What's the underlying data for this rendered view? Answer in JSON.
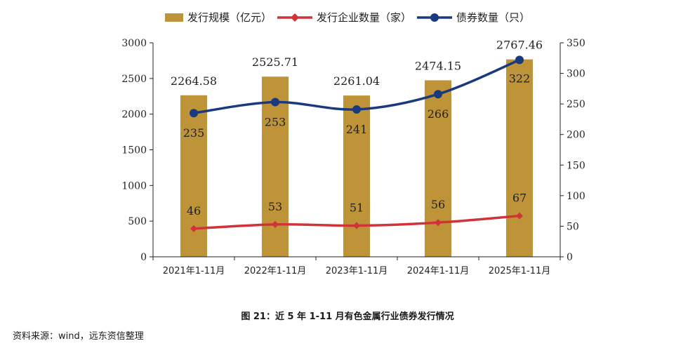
{
  "chart_data": {
    "type": "bar",
    "categories": [
      "2021年1-11月",
      "2022年1-11月",
      "2023年1-11月",
      "2024年1-11月",
      "2025年1-11月"
    ],
    "series": [
      {
        "name": "发行规模（亿元）",
        "type": "bar",
        "axis": "left",
        "color": "#BF9438",
        "values": [
          2264.58,
          2525.71,
          2261.04,
          2474.15,
          2767.46
        ],
        "labels": [
          "2264.58",
          "2525.71",
          "2261.04",
          "2474.15",
          "2767.46"
        ]
      },
      {
        "name": "发行企业数量（家）",
        "type": "line",
        "axis": "right",
        "color": "#D0343A",
        "marker": "diamond",
        "values": [
          46,
          53,
          51,
          56,
          67
        ],
        "labels": [
          "46",
          "53",
          "51",
          "56",
          "67"
        ]
      },
      {
        "name": "债券数量（只）",
        "type": "line",
        "axis": "right",
        "color": "#1A3A7E",
        "marker": "circle",
        "values": [
          235,
          253,
          241,
          266,
          322
        ],
        "labels": [
          "235",
          "253",
          "241",
          "266",
          "322"
        ]
      }
    ],
    "y_left": {
      "min": 0,
      "max": 3000,
      "ticks": [
        0,
        500,
        1000,
        1500,
        2000,
        2500,
        3000
      ]
    },
    "y_right": {
      "min": 0,
      "max": 350,
      "ticks": [
        0,
        50,
        100,
        150,
        200,
        250,
        300,
        350
      ]
    },
    "legend_position": "top",
    "grid": false
  },
  "caption": "图 21：近 5 年 1-11 月有色金属行业债券发行情况",
  "source": "资料来源：wind，远东资信整理"
}
